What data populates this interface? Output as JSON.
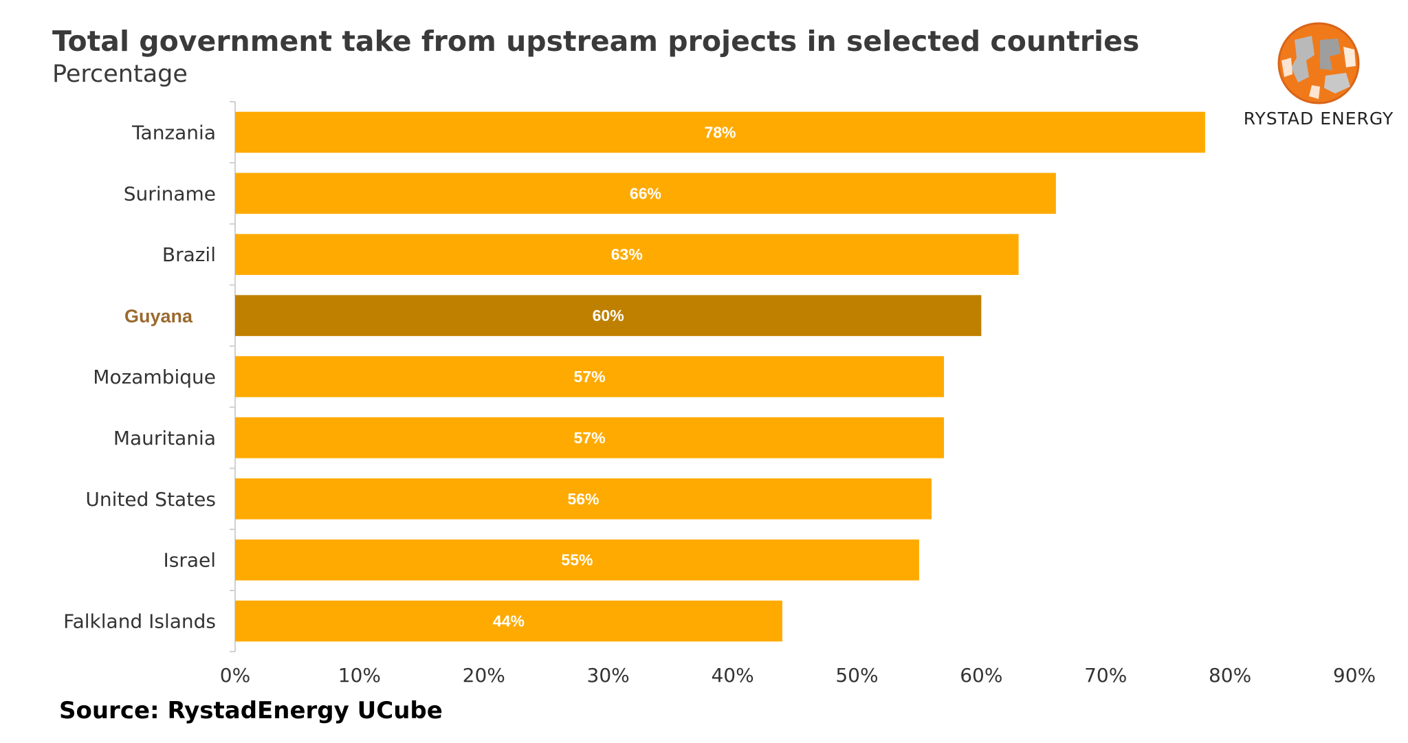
{
  "header": {
    "title": "Total government take from upstream projects in selected countries",
    "subtitle": "Percentage"
  },
  "footer": {
    "source": "Source: RystadEnergy UCube"
  },
  "logo": {
    "text": "RYSTAD ENERGY",
    "icon": "globe-logo-icon"
  },
  "colors": {
    "bar": "#FFAA00",
    "highlight_bar": "#BF8000",
    "highlight_label": "#9A6A2E",
    "bar_label": "#FFFFFF",
    "axis_text": "#333333"
  },
  "chart_data": {
    "type": "bar",
    "orientation": "horizontal",
    "title": "Total government take from upstream projects in selected countries",
    "subtitle": "Percentage",
    "categories": [
      "Tanzania",
      "Suriname",
      "Brazil",
      "Guyana",
      "Mozambique",
      "Mauritania",
      "United States",
      "Israel",
      "Falkland Islands"
    ],
    "values": [
      78,
      66,
      63,
      60,
      57,
      57,
      56,
      55,
      44
    ],
    "data_labels": [
      "78%",
      "66%",
      "63%",
      "60%",
      "57%",
      "57%",
      "56%",
      "55%",
      "44%"
    ],
    "highlight": "Guyana",
    "xlim": [
      0,
      90
    ],
    "xticks": [
      0,
      10,
      20,
      30,
      40,
      50,
      60,
      70,
      80,
      90
    ],
    "xtick_labels": [
      "0%",
      "10%",
      "20%",
      "30%",
      "40%",
      "50%",
      "60%",
      "70%",
      "80%",
      "90%"
    ],
    "grid": false,
    "legend": "none"
  }
}
